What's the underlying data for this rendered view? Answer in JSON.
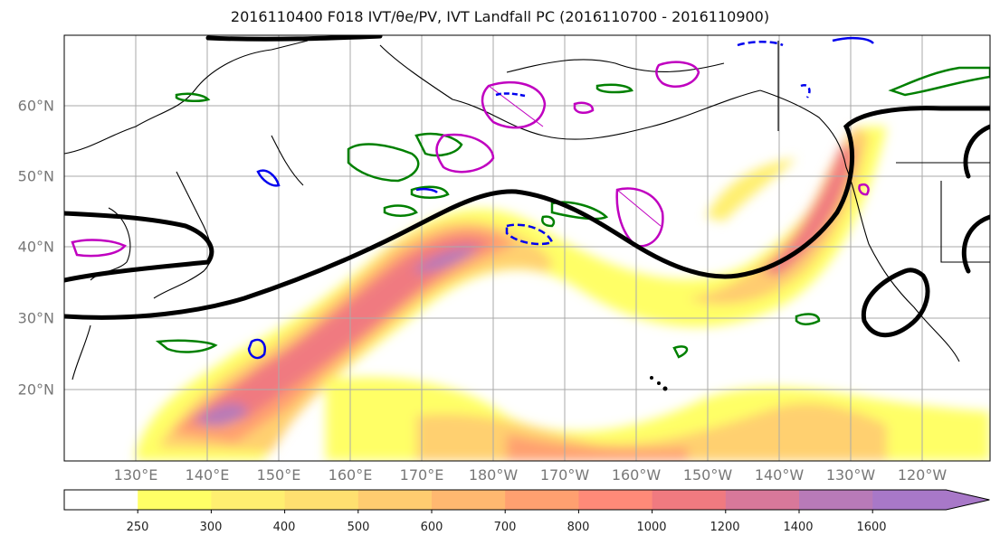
{
  "title": "2016110400 F018 IVT/θe/PV, IVT Landfall PC (2016110700 - 2016110900)",
  "map": {
    "lat_labels": [
      "60°N",
      "50°N",
      "40°N",
      "30°N",
      "20°N"
    ],
    "lon_labels": [
      "130°E",
      "140°E",
      "150°E",
      "160°E",
      "170°E",
      "180°W",
      "170°W",
      "160°W",
      "150°W",
      "140°W",
      "130°W",
      "120°W"
    ],
    "contour_colors": {
      "theta_e": "#000000",
      "ivt_landfall_pc": "#008000",
      "pv_positive": "#c000c0",
      "pv_negative": "#0000ee"
    }
  },
  "colorbar": {
    "levels": [
      "250",
      "300",
      "400",
      "500",
      "600",
      "700",
      "800",
      "1000",
      "1200",
      "1400",
      "1600"
    ],
    "colors": [
      "#ffff66",
      "#ffef70",
      "#ffe070",
      "#ffcc70",
      "#ffb870",
      "#ffa070",
      "#ff8a78",
      "#f07a80",
      "#d8789a",
      "#b87ab8",
      "#a878c8"
    ],
    "extend": "max"
  }
}
